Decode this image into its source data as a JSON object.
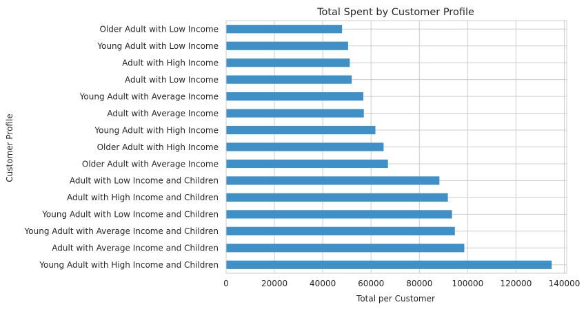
{
  "chart_data": {
    "type": "bar",
    "orientation": "horizontal",
    "title": "Total Spent by Customer Profile",
    "xlabel": "Total per Customer",
    "ylabel": "Customer Profile",
    "xlim": [
      0,
      141000
    ],
    "xticks": [
      0,
      20000,
      40000,
      60000,
      80000,
      100000,
      120000,
      140000
    ],
    "grid": true,
    "bar_color": "#4090c8",
    "grid_color": "#cccccc",
    "categories": [
      "Older Adult with Low Income",
      "Young Adult with Low Income",
      "Adult with High Income",
      "Adult with Low Income",
      "Young Adult with Average Income",
      "Adult with Average Income",
      "Young Adult with High Income",
      "Older Adult with High Income",
      "Older Adult with Average Income",
      "Adult with Low Income and Children",
      "Adult with High Income and Children",
      "Young Adult with Low Income and Children",
      "Young Adult with Average Income and Children",
      "Adult with Average Income and Children",
      "Young Adult with High Income and Children"
    ],
    "values": [
      48000,
      50500,
      51200,
      52000,
      56800,
      57000,
      61800,
      65200,
      67000,
      88300,
      91800,
      93500,
      94700,
      98600,
      134800
    ]
  }
}
